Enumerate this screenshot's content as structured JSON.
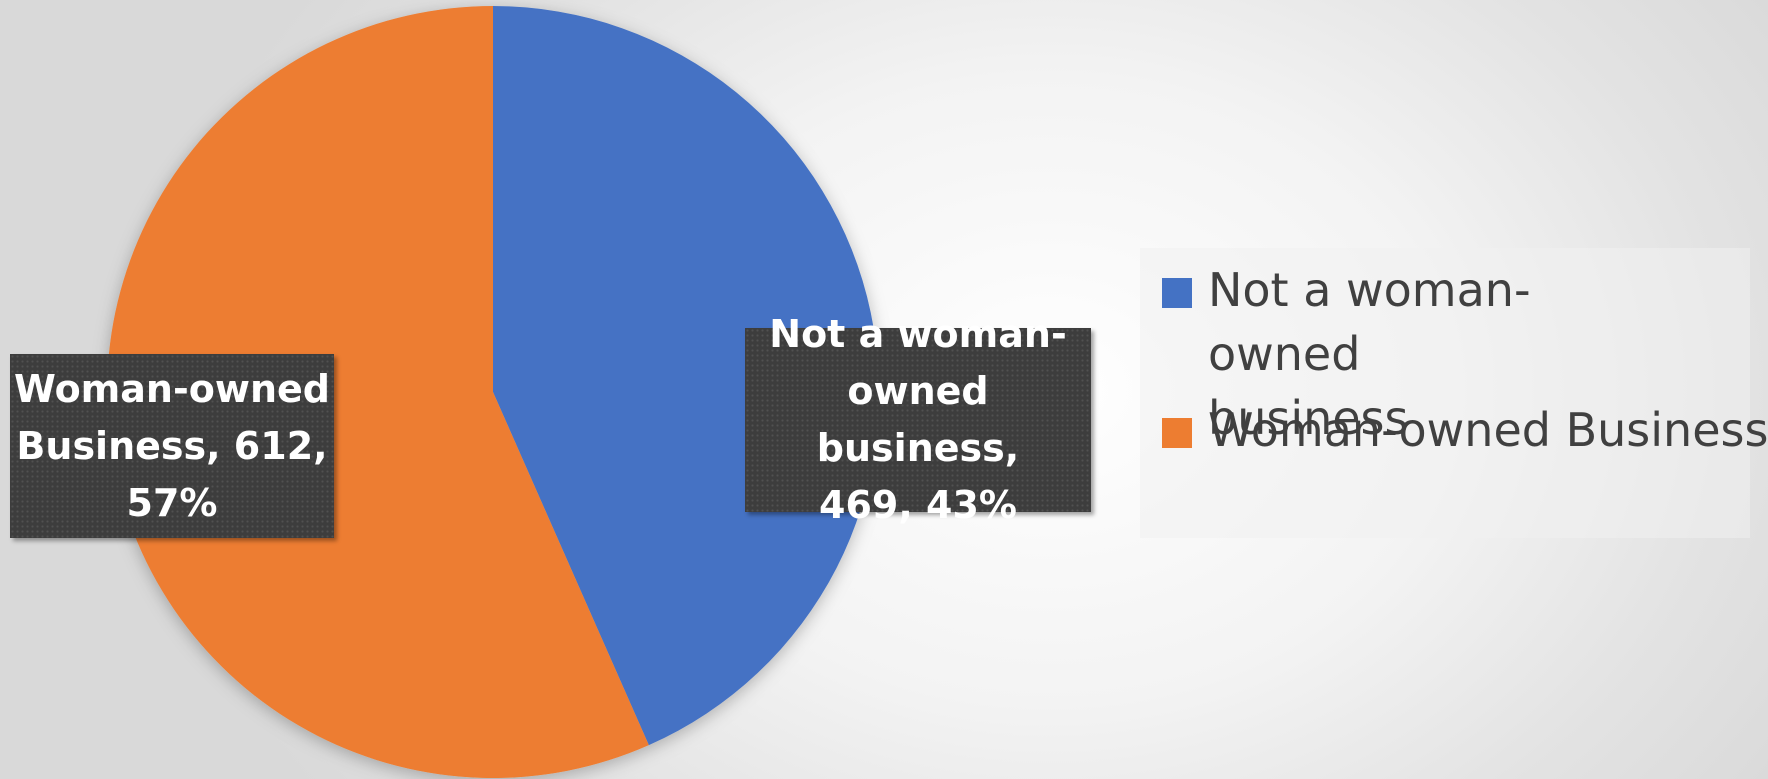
{
  "chart_data": {
    "type": "pie",
    "categories": [
      "Not a woman-owned business",
      "Woman-owned Business"
    ],
    "values": [
      469,
      612
    ],
    "percentages": [
      "43%",
      "57%"
    ],
    "colors": [
      "#4472C4",
      "#ED7D31"
    ],
    "data_labels": [
      {
        "line1": "Not a woman-",
        "line2": "owned business,",
        "line3": "469, 43%"
      },
      {
        "line1": "Woman-owned",
        "line2": "Business, 612,",
        "line3": "57%"
      }
    ],
    "legend": {
      "position": "right",
      "entries": [
        {
          "label_line1": "Not a woman-owned",
          "label_line2": "business"
        },
        {
          "label_line1": "Woman-owned Business",
          "label_line2": ""
        }
      ]
    }
  }
}
